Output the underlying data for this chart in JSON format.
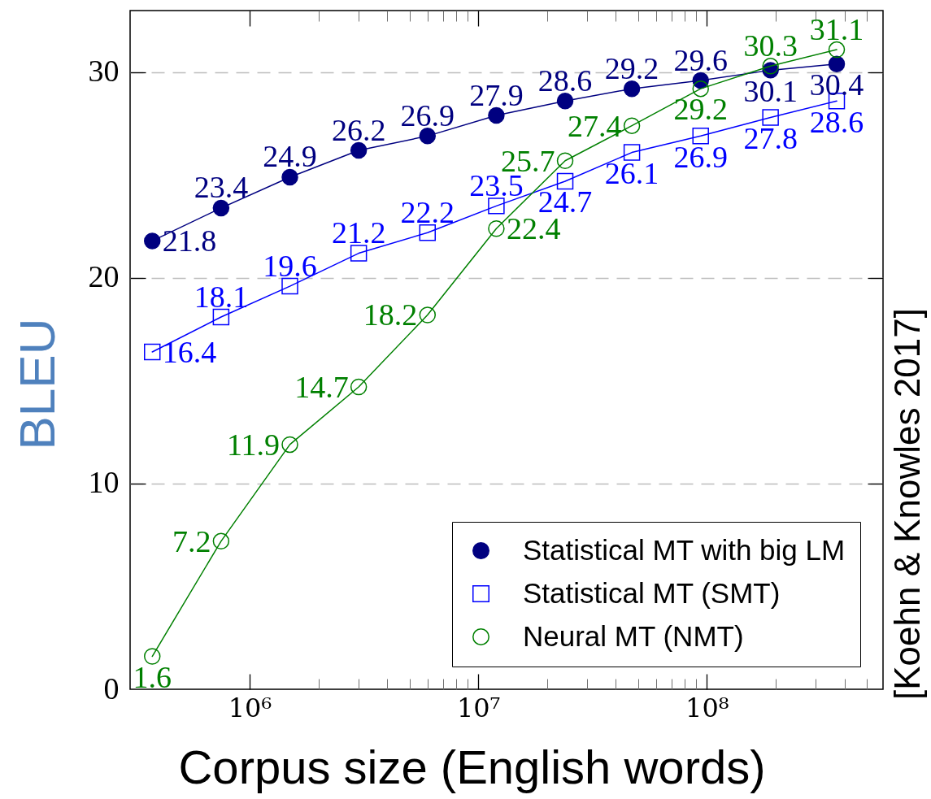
{
  "chart_data": {
    "type": "line",
    "xlabel": "Corpus size (English words)",
    "ylabel": "BLEU",
    "annotations": [
      "[Koehn & Knowles 2017]"
    ],
    "x": [
      375000,
      750000,
      1500000,
      3000000,
      6000000,
      12000000,
      24000000,
      47000000,
      94000000,
      190000000,
      370000000
    ],
    "series": [
      {
        "name": "Statistical MT with big LM",
        "color": "#000080",
        "marker": "circle",
        "values": [
          21.8,
          23.4,
          24.9,
          26.2,
          26.9,
          27.9,
          28.6,
          29.2,
          29.6,
          30.1,
          30.4
        ]
      },
      {
        "name": "Statistical MT (SMT)",
        "color": "#0000ff",
        "marker": "square",
        "values": [
          16.4,
          18.1,
          19.6,
          21.2,
          22.2,
          23.5,
          24.7,
          26.1,
          26.9,
          27.8,
          28.6
        ]
      },
      {
        "name": "Neural MT (NMT)",
        "color": "#008000",
        "marker": "circle",
        "values": [
          1.6,
          7.2,
          11.9,
          14.7,
          18.2,
          22.4,
          25.7,
          27.4,
          29.2,
          30.3,
          31.1
        ]
      }
    ],
    "log": "x",
    "xlim": [
      300000,
      590000000
    ],
    "xticks": [
      {
        "value": 1000000,
        "label": "10⁶"
      },
      {
        "value": 2000000,
        "label": null
      },
      {
        "value": 3000000,
        "label": null
      },
      {
        "value": 4000000,
        "label": null
      },
      {
        "value": 5000000,
        "label": null
      },
      {
        "value": 6000000,
        "label": null
      },
      {
        "value": 7000000,
        "label": null
      },
      {
        "value": 8000000,
        "label": null
      },
      {
        "value": 9000000,
        "label": null
      },
      {
        "value": 10000000,
        "label": "10⁷"
      },
      {
        "value": 20000000,
        "label": null
      },
      {
        "value": 30000000,
        "label": null
      },
      {
        "value": 40000000,
        "label": null
      },
      {
        "value": 50000000,
        "label": null
      },
      {
        "value": 60000000,
        "label": null
      },
      {
        "value": 70000000,
        "label": null
      },
      {
        "value": 80000000,
        "label": null
      },
      {
        "value": 90000000,
        "label": null
      },
      {
        "value": 100000000,
        "label": "10⁸"
      },
      {
        "value": 200000000,
        "label": null
      },
      {
        "value": 300000000,
        "label": null
      },
      {
        "value": 400000000,
        "label": null
      },
      {
        "value": 500000000,
        "label": null
      }
    ],
    "ylim": [
      0,
      33
    ],
    "yticks": [
      0,
      10,
      20,
      30
    ],
    "grid": "y",
    "legend": "bottom right",
    "data_labels": true,
    "line_style": "solid"
  }
}
